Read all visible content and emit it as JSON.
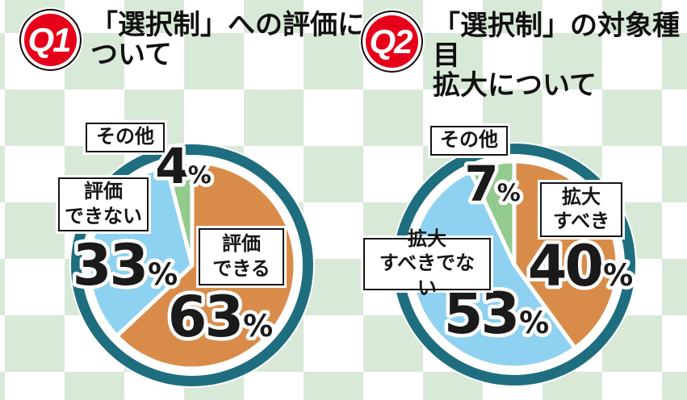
{
  "questions": [
    {
      "badge": "Q1",
      "title": "「選択制」への評価に\nついて"
    },
    {
      "badge": "Q2",
      "title": "「選択制」の対象種目\n拡大について"
    }
  ],
  "chart_data": [
    {
      "type": "pie",
      "question": "Q1",
      "title": "「選択制」への評価について",
      "unit": "%",
      "direction": "clockwise",
      "start_angle_deg": 0,
      "ring_color": "#1f6e80",
      "slices": [
        {
          "label": "評価\nできる",
          "value": 63,
          "color": "#d98c4a"
        },
        {
          "label": "評価\nできない",
          "value": 33,
          "color": "#8fd1f0"
        },
        {
          "label": "その他",
          "value": 4,
          "color": "#93ca8e"
        }
      ]
    },
    {
      "type": "pie",
      "question": "Q2",
      "title": "「選択制」の対象種目拡大について",
      "unit": "%",
      "direction": "clockwise",
      "start_angle_deg": 0,
      "ring_color": "#1f6e80",
      "slices": [
        {
          "label": "拡大\nすべき",
          "value": 40,
          "color": "#d98c4a"
        },
        {
          "label": "拡大\nすべきでない",
          "value": 53,
          "color": "#8fd1f0"
        },
        {
          "label": "その他",
          "value": 7,
          "color": "#93ca8e"
        }
      ]
    }
  ]
}
